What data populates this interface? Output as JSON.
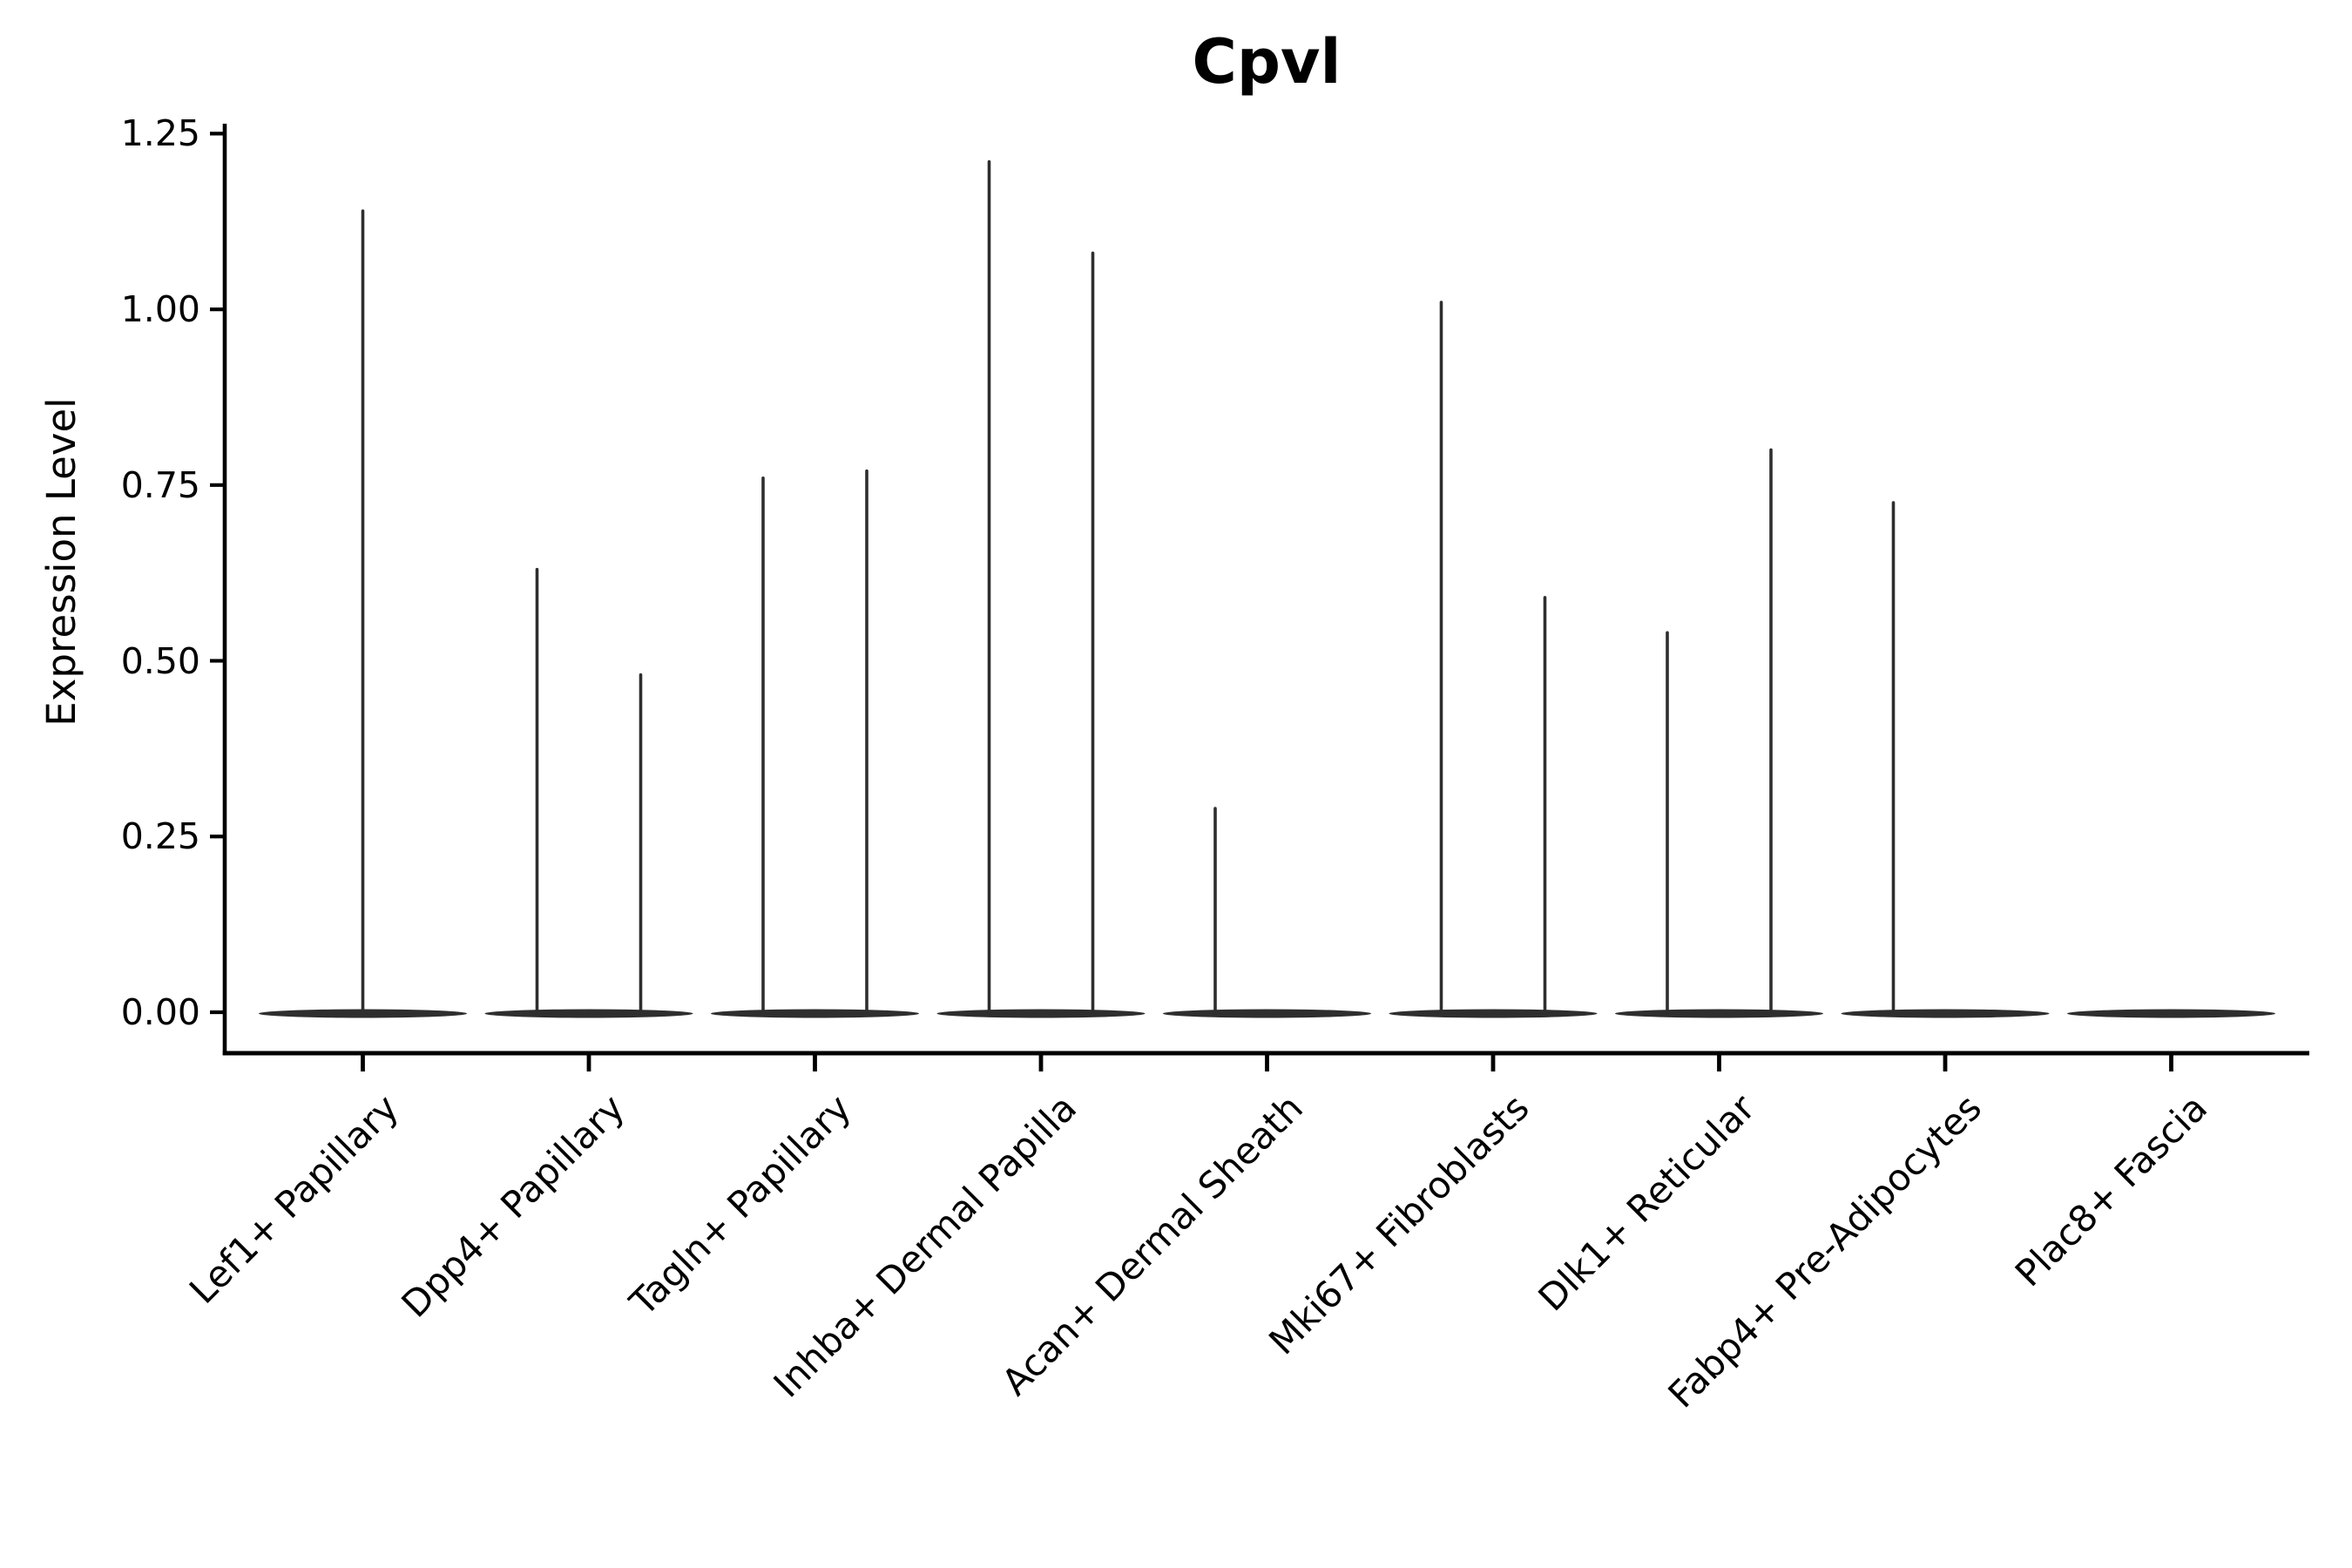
{
  "chart_data": {
    "type": "violin",
    "title": "Cpvl",
    "ylabel": "Expression Level",
    "xlabel": "",
    "ylim": [
      -0.06,
      1.27
    ],
    "grid": false,
    "legend": "none",
    "y_ticks": [
      "1.25",
      "1.00",
      "0.75",
      "0.50",
      "0.25",
      "0.00"
    ],
    "y_tick_values": [
      1.25,
      1.0,
      0.75,
      0.5,
      0.25,
      0.0
    ],
    "categories": [
      "Lef1+ Papillary",
      "Dpp4+ Papillary",
      "Tagln+ Papillary",
      "Inhba+ Dermal Papilla",
      "Acan+ Dermal Sheath",
      "Mki67+ Fibroblasts",
      "Dlk1+ Reticular",
      "Fabp4+ Pre-Adipocytes",
      "Plac8+ Fascia"
    ],
    "baseline_value": 0,
    "groups": [
      {
        "category": "Lef1+ Papillary",
        "violins": [
          {
            "slot": "full",
            "max_expression": 1.14
          }
        ]
      },
      {
        "category": "Dpp4+ Papillary",
        "violins": [
          {
            "slot": "left",
            "max_expression": 0.63
          },
          {
            "slot": "right",
            "max_expression": 0.48
          }
        ]
      },
      {
        "category": "Tagln+ Papillary",
        "violins": [
          {
            "slot": "left",
            "max_expression": 0.76
          },
          {
            "slot": "right",
            "max_expression": 0.77
          }
        ]
      },
      {
        "category": "Inhba+ Dermal Papilla",
        "violins": [
          {
            "slot": "left",
            "max_expression": 1.21
          },
          {
            "slot": "right",
            "max_expression": 1.08
          }
        ]
      },
      {
        "category": "Acan+ Dermal Sheath",
        "violins": [
          {
            "slot": "left",
            "max_expression": 0.29
          }
        ]
      },
      {
        "category": "Mki67+ Fibroblasts",
        "violins": [
          {
            "slot": "left",
            "max_expression": 1.01
          },
          {
            "slot": "right",
            "max_expression": 0.59
          }
        ]
      },
      {
        "category": "Dlk1+ Reticular",
        "violins": [
          {
            "slot": "left",
            "max_expression": 0.54
          },
          {
            "slot": "right",
            "max_expression": 0.8
          }
        ]
      },
      {
        "category": "Fabp4+ Pre-Adipocytes",
        "violins": [
          {
            "slot": "left",
            "max_expression": 0.725
          }
        ]
      },
      {
        "category": "Plac8+ Fascia",
        "violins": []
      }
    ]
  },
  "colors": {
    "violin": "#2e2e2e",
    "axis": "#000000",
    "text": "#000000",
    "background": "#ffffff"
  }
}
